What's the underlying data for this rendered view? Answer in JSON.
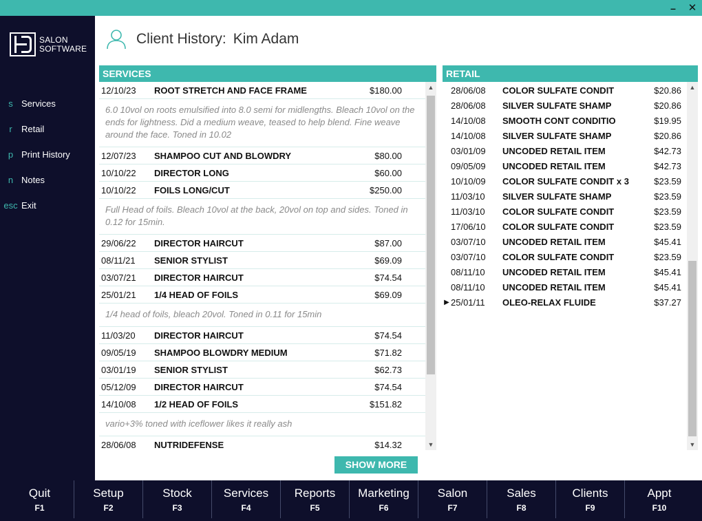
{
  "window": {
    "minimize_glyph": "–",
    "close_glyph": "✕"
  },
  "logo": {
    "line1": "SALON",
    "line2": "SOFTWARE"
  },
  "nav": {
    "items": [
      {
        "key": "s",
        "label": "Services"
      },
      {
        "key": "r",
        "label": "Retail"
      },
      {
        "key": "p",
        "label": "Print History"
      },
      {
        "key": "n",
        "label": "Notes"
      },
      {
        "key": "esc",
        "label": "Exit"
      }
    ]
  },
  "header": {
    "title": "Client History:",
    "client_name": "Kim Adam"
  },
  "services": {
    "heading": "SERVICES",
    "entries": [
      {
        "date": "12/10/23",
        "name": "ROOT STRETCH AND FACE FRAME",
        "price": "$180.00",
        "note": "6.0 10vol on roots emulsified into 8.0 semi for midlengths. Bleach 10vol on the ends for lightness. Did a medium weave, teased to help blend. Fine weave around the face. Toned in 10.02"
      },
      {
        "date": "12/07/23",
        "name": "SHAMPOO CUT AND BLOWDRY",
        "price": "$80.00"
      },
      {
        "date": "10/10/22",
        "name": "DIRECTOR LONG",
        "price": "$60.00"
      },
      {
        "date": "10/10/22",
        "name": "FOILS LONG/CUT",
        "price": "$250.00",
        "note": "Full Head of foils. Bleach 10vol at the back, 20vol on top and sides. Toned in 0.12 for 15min."
      },
      {
        "date": "29/06/22",
        "name": "DIRECTOR HAIRCUT",
        "price": "$87.00"
      },
      {
        "date": "08/11/21",
        "name": "SENIOR STYLIST",
        "price": "$69.09"
      },
      {
        "date": "03/07/21",
        "name": "DIRECTOR HAIRCUT",
        "price": "$74.54"
      },
      {
        "date": "25/01/21",
        "name": "1/4 HEAD OF FOILS",
        "price": "$69.09",
        "note": "1/4 head of foils, bleach 20vol. Toned in 0.11 for 15min"
      },
      {
        "date": "11/03/20",
        "name": "DIRECTOR HAIRCUT",
        "price": "$74.54"
      },
      {
        "date": "09/05/19",
        "name": "SHAMPOO BLOWDRY MEDIUM",
        "price": "$71.82"
      },
      {
        "date": "03/01/19",
        "name": "SENIOR STYLIST",
        "price": "$62.73"
      },
      {
        "date": "05/12/09",
        "name": "DIRECTOR HAIRCUT",
        "price": "$74.54"
      },
      {
        "date": "14/10/08",
        "name": "1/2 HEAD OF FOILS",
        "price": "$151.82",
        "note": "vario+3% toned with iceflower likes it really ash"
      },
      {
        "date": "28/06/08",
        "name": "NUTRIDEFENSE",
        "price": "$14.32"
      }
    ]
  },
  "retail": {
    "heading": "RETAIL",
    "entries": [
      {
        "date": "28/06/08",
        "name": "COLOR SULFATE CONDIT",
        "price": "$20.86"
      },
      {
        "date": "28/06/08",
        "name": "SILVER SULFATE SHAMP",
        "price": "$20.86"
      },
      {
        "date": "14/10/08",
        "name": "SMOOTH CONT CONDITIO",
        "price": "$19.95"
      },
      {
        "date": "14/10/08",
        "name": "SILVER SULFATE SHAMP",
        "price": "$20.86"
      },
      {
        "date": "03/01/09",
        "name": "UNCODED RETAIL ITEM",
        "price": "$42.73"
      },
      {
        "date": "09/05/09",
        "name": "UNCODED RETAIL ITEM",
        "price": "$42.73"
      },
      {
        "date": "10/10/09",
        "name": "COLOR SULFATE CONDIT x 3",
        "price": "$23.59"
      },
      {
        "date": "11/03/10",
        "name": "SILVER SULFATE SHAMP",
        "price": "$23.59"
      },
      {
        "date": "11/03/10",
        "name": "COLOR SULFATE CONDIT",
        "price": "$23.59"
      },
      {
        "date": "17/06/10",
        "name": "COLOR SULFATE CONDIT",
        "price": "$23.59"
      },
      {
        "date": "03/07/10",
        "name": "UNCODED RETAIL ITEM",
        "price": "$45.41"
      },
      {
        "date": "03/07/10",
        "name": "COLOR SULFATE CONDIT",
        "price": "$23.59"
      },
      {
        "date": "08/11/10",
        "name": "UNCODED RETAIL ITEM",
        "price": "$45.41"
      },
      {
        "date": "08/11/10",
        "name": "UNCODED RETAIL ITEM",
        "price": "$45.41"
      },
      {
        "date": "25/01/11",
        "name": "OLEO-RELAX FLUIDE",
        "price": "$37.27",
        "current": true
      }
    ]
  },
  "show_more_label": "SHOW MORE",
  "function_bar": [
    {
      "label": "Quit",
      "key": "F1"
    },
    {
      "label": "Setup",
      "key": "F2"
    },
    {
      "label": "Stock",
      "key": "F3"
    },
    {
      "label": "Services",
      "key": "F4"
    },
    {
      "label": "Reports",
      "key": "F5"
    },
    {
      "label": "Marketing",
      "key": "F6"
    },
    {
      "label": "Salon",
      "key": "F7"
    },
    {
      "label": "Sales",
      "key": "F8"
    },
    {
      "label": "Clients",
      "key": "F9"
    },
    {
      "label": "Appt",
      "key": "F10"
    }
  ],
  "colors": {
    "accent": "#3eb8ae",
    "sidebar": "#0e0f2b"
  }
}
